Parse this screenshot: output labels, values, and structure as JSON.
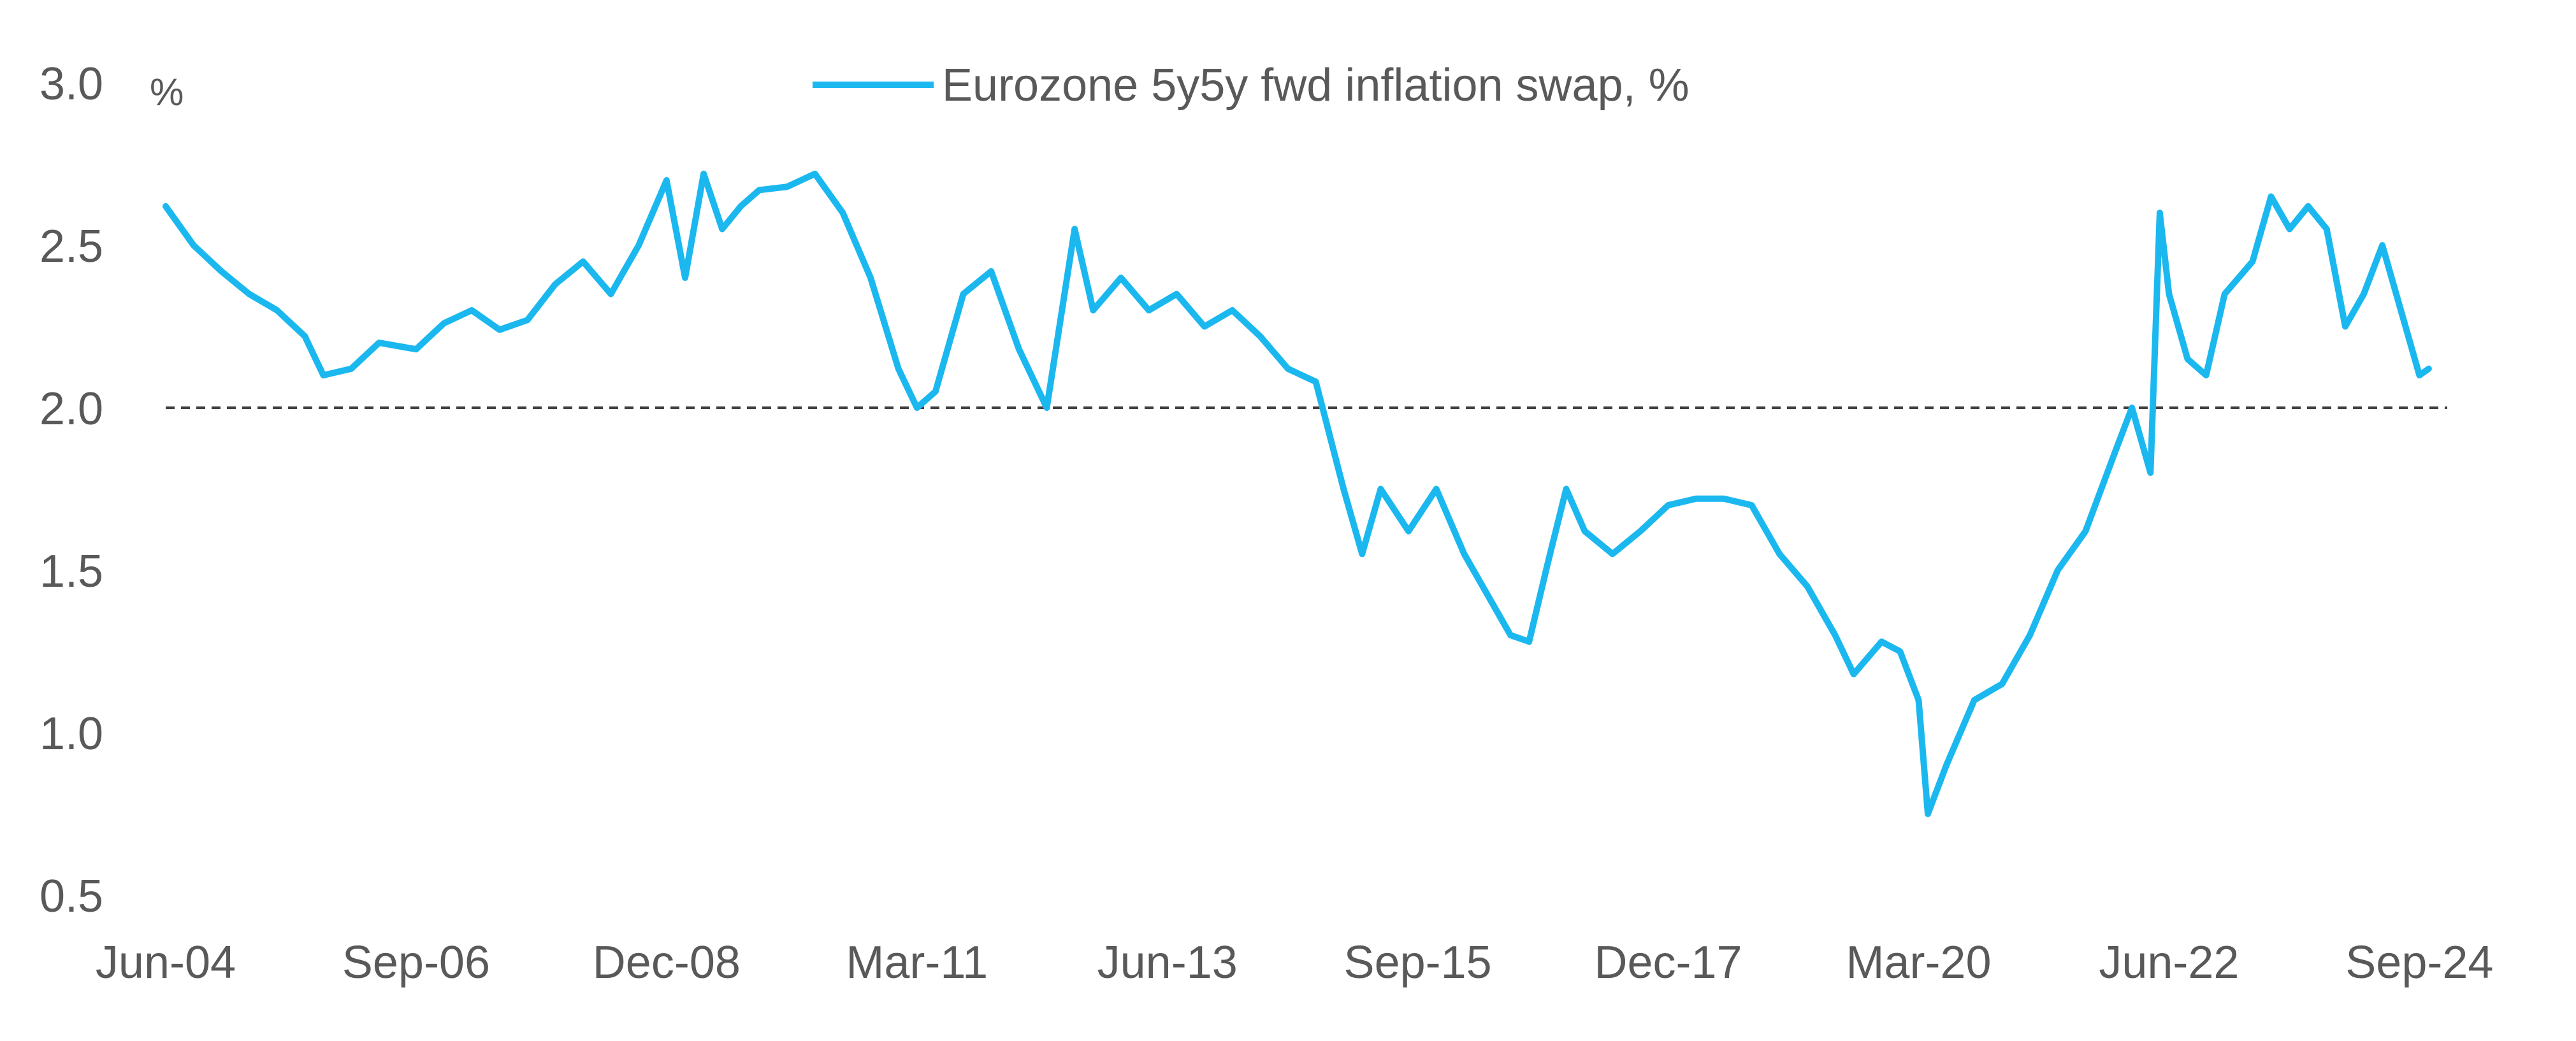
{
  "chart_data": {
    "type": "line",
    "title": "",
    "xlabel": "",
    "ylabel": "",
    "y_unit": "%",
    "ylim": [
      0.5,
      3.0
    ],
    "yticks": [
      "0.5",
      "1.0",
      "1.5",
      "2.0",
      "2.5",
      "3.0"
    ],
    "xlim": [
      "2004-06",
      "2024-12"
    ],
    "xticks": [
      {
        "label": "Jun-04",
        "date": "2004-06"
      },
      {
        "label": "Sep-06",
        "date": "2006-09"
      },
      {
        "label": "Dec-08",
        "date": "2008-12"
      },
      {
        "label": "Mar-11",
        "date": "2011-03"
      },
      {
        "label": "Jun-13",
        "date": "2013-06"
      },
      {
        "label": "Sep-15",
        "date": "2015-09"
      },
      {
        "label": "Dec-17",
        "date": "2017-12"
      },
      {
        "label": "Mar-20",
        "date": "2020-03"
      },
      {
        "label": "Jun-22",
        "date": "2022-06"
      },
      {
        "label": "Sep-24",
        "date": "2024-09"
      }
    ],
    "reference_line": {
      "y": 2.0,
      "style": "dashed"
    },
    "grid": false,
    "legend": {
      "placement": "top-center"
    },
    "series": [
      {
        "name": "Eurozone 5y5y fwd inflation swap, %",
        "color": "#1BB8F0",
        "points": [
          [
            "2004-06",
            2.62
          ],
          [
            "2004-09",
            2.5
          ],
          [
            "2004-12",
            2.42
          ],
          [
            "2005-03",
            2.35
          ],
          [
            "2005-06",
            2.3
          ],
          [
            "2005-09",
            2.22
          ],
          [
            "2005-11",
            2.1
          ],
          [
            "2006-02",
            2.12
          ],
          [
            "2006-05",
            2.2
          ],
          [
            "2006-09",
            2.18
          ],
          [
            "2006-12",
            2.26
          ],
          [
            "2007-03",
            2.3
          ],
          [
            "2007-06",
            2.24
          ],
          [
            "2007-09",
            2.27
          ],
          [
            "2007-12",
            2.38
          ],
          [
            "2008-03",
            2.45
          ],
          [
            "2008-06",
            2.35
          ],
          [
            "2008-09",
            2.5
          ],
          [
            "2008-12",
            2.7
          ],
          [
            "2009-02",
            2.4
          ],
          [
            "2009-04",
            2.72
          ],
          [
            "2009-06",
            2.55
          ],
          [
            "2009-08",
            2.62
          ],
          [
            "2009-10",
            2.67
          ],
          [
            "2010-01",
            2.68
          ],
          [
            "2010-04",
            2.72
          ],
          [
            "2010-07",
            2.6
          ],
          [
            "2010-10",
            2.4
          ],
          [
            "2011-01",
            2.12
          ],
          [
            "2011-03",
            2.0
          ],
          [
            "2011-05",
            2.05
          ],
          [
            "2011-08",
            2.35
          ],
          [
            "2011-11",
            2.42
          ],
          [
            "2012-02",
            2.18
          ],
          [
            "2012-05",
            2.0
          ],
          [
            "2012-08",
            2.55
          ],
          [
            "2012-10",
            2.3
          ],
          [
            "2013-01",
            2.4
          ],
          [
            "2013-04",
            2.3
          ],
          [
            "2013-07",
            2.35
          ],
          [
            "2013-10",
            2.25
          ],
          [
            "2014-01",
            2.3
          ],
          [
            "2014-04",
            2.22
          ],
          [
            "2014-07",
            2.12
          ],
          [
            "2014-10",
            2.08
          ],
          [
            "2015-01",
            1.75
          ],
          [
            "2015-03",
            1.55
          ],
          [
            "2015-05",
            1.75
          ],
          [
            "2015-08",
            1.62
          ],
          [
            "2015-11",
            1.75
          ],
          [
            "2016-02",
            1.55
          ],
          [
            "2016-05",
            1.4
          ],
          [
            "2016-07",
            1.3
          ],
          [
            "2016-09",
            1.28
          ],
          [
            "2016-11",
            1.52
          ],
          [
            "2017-01",
            1.75
          ],
          [
            "2017-03",
            1.62
          ],
          [
            "2017-06",
            1.55
          ],
          [
            "2017-09",
            1.62
          ],
          [
            "2017-12",
            1.7
          ],
          [
            "2018-03",
            1.72
          ],
          [
            "2018-06",
            1.72
          ],
          [
            "2018-09",
            1.7
          ],
          [
            "2018-12",
            1.55
          ],
          [
            "2019-03",
            1.45
          ],
          [
            "2019-06",
            1.3
          ],
          [
            "2019-08",
            1.18
          ],
          [
            "2019-11",
            1.28
          ],
          [
            "2020-01",
            1.25
          ],
          [
            "2020-03",
            1.1
          ],
          [
            "2020-04",
            0.75
          ],
          [
            "2020-06",
            0.9
          ],
          [
            "2020-09",
            1.1
          ],
          [
            "2020-12",
            1.15
          ],
          [
            "2021-03",
            1.3
          ],
          [
            "2021-06",
            1.5
          ],
          [
            "2021-09",
            1.62
          ],
          [
            "2021-12",
            1.85
          ],
          [
            "2022-02",
            2.0
          ],
          [
            "2022-04",
            1.8
          ],
          [
            "2022-05",
            2.6
          ],
          [
            "2022-06",
            2.35
          ],
          [
            "2022-08",
            2.15
          ],
          [
            "2022-10",
            2.1
          ],
          [
            "2022-12",
            2.35
          ],
          [
            "2023-03",
            2.45
          ],
          [
            "2023-05",
            2.65
          ],
          [
            "2023-07",
            2.55
          ],
          [
            "2023-09",
            2.62
          ],
          [
            "2023-11",
            2.55
          ],
          [
            "2024-01",
            2.25
          ],
          [
            "2024-03",
            2.35
          ],
          [
            "2024-05",
            2.5
          ],
          [
            "2024-07",
            2.3
          ],
          [
            "2024-09",
            2.1
          ],
          [
            "2024-10",
            2.12
          ]
        ]
      }
    ]
  }
}
